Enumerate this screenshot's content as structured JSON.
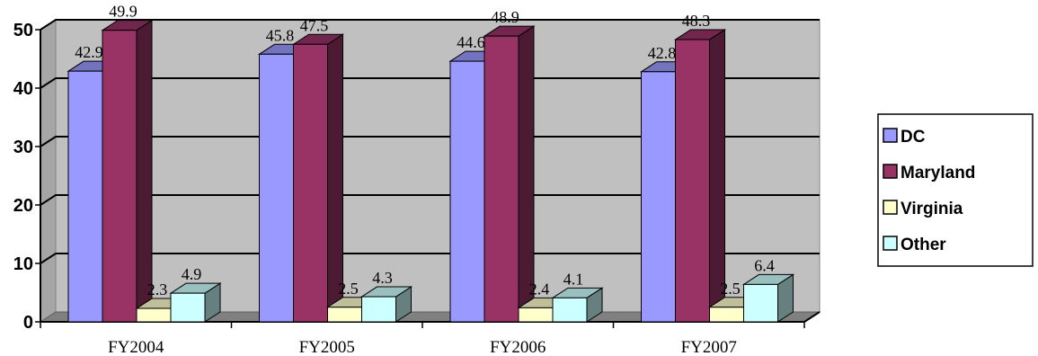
{
  "chart_data": {
    "type": "bar",
    "categories": [
      "FY2004",
      "FY2005",
      "FY2006",
      "FY2007"
    ],
    "series": [
      {
        "name": "DC",
        "values": [
          42.9,
          45.8,
          44.6,
          42.8
        ],
        "color": "#9999ff"
      },
      {
        "name": "Maryland",
        "values": [
          49.9,
          47.5,
          48.9,
          48.3
        ],
        "color": "#993366"
      },
      {
        "name": "Virginia",
        "values": [
          2.3,
          2.5,
          2.4,
          2.5
        ],
        "color": "#ffffcc"
      },
      {
        "name": "Other",
        "values": [
          4.9,
          4.3,
          4.1,
          6.4
        ],
        "color": "#ccffff"
      }
    ],
    "yticks": [
      "0",
      "10",
      "20",
      "30",
      "40",
      "50"
    ],
    "ylim": [
      0,
      50
    ],
    "grid": true,
    "legend": "right",
    "plot_background": "#c0c0c0"
  }
}
